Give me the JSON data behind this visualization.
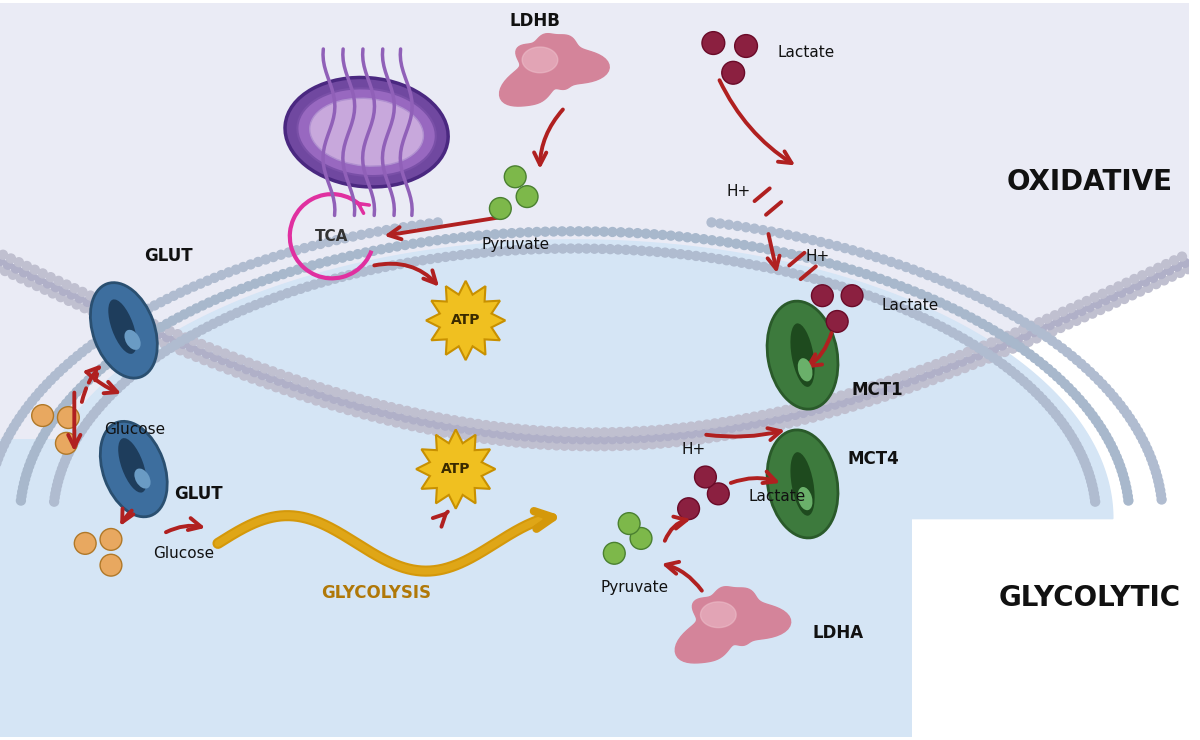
{
  "bg_color": "#ffffff",
  "oxidative_bg": "#eaebf5",
  "glycolytic_bg": "#d5e5f5",
  "membrane_dot_outer": "#b8b8cc",
  "membrane_dot_inner": "#c8d0e0",
  "glut_body": "#3d6e9e",
  "glut_dark": "#1e3d5c",
  "glut_light": "#6a9bc4",
  "mct_body": "#3d7a3d",
  "mct_dark": "#1e4a1e",
  "mct_light": "#6ab06a",
  "glucose_color": "#e8a860",
  "pyruvate_color": "#7db84a",
  "lactate_color": "#8b2040",
  "ldh_color": "#d4849a",
  "ldh_highlight": "#eec0cc",
  "mito_outer": "#7048a0",
  "mito_mid": "#9868c0",
  "mito_inner": "#c8a8dc",
  "mito_crista": "#9060b8",
  "red_arrow": "#b02020",
  "gold": "#d4980a",
  "gold_dark": "#b07808",
  "pink_tca": "#e030a0",
  "atp_yellow": "#f0c020",
  "atp_text": "#3a2a00",
  "text_dark": "#111111",
  "label_oxidative": "OXIDATIVE",
  "label_glycolytic": "GLYCOLYTIC",
  "label_glut": "GLUT",
  "label_mct1": "MCT1",
  "label_mct4": "MCT4",
  "label_ldhb": "LDHB",
  "label_ldha": "LDHA",
  "label_tca": "TCA",
  "label_atp": "ATP",
  "label_glucose": "Glucose",
  "label_pyruvate": "Pyruvate",
  "label_lactate": "Lactate",
  "label_glycolysis": "GLYCOLYSIS",
  "label_hplus": "H+"
}
